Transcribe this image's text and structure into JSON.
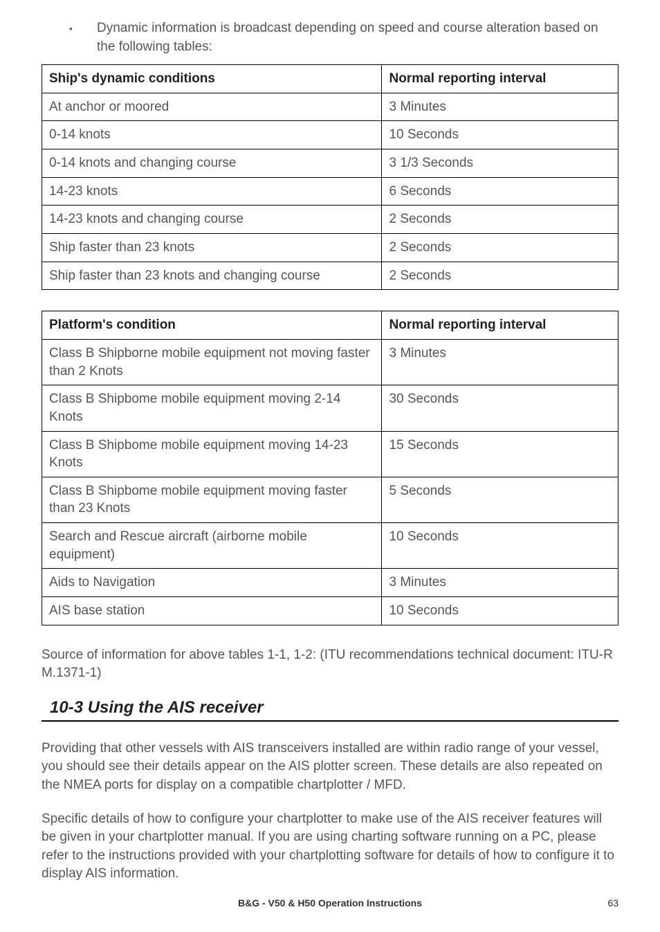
{
  "bullet": {
    "text": "Dynamic information is broadcast depending on speed and course alteration based on the following tables:"
  },
  "table1": {
    "headers": [
      "Ship's dynamic conditions",
      "Normal reporting interval"
    ],
    "rows": [
      [
        "At anchor or moored",
        "3 Minutes"
      ],
      [
        "0-14 knots",
        "10 Seconds"
      ],
      [
        "0-14 knots and changing course",
        "3 1/3 Seconds"
      ],
      [
        "14-23 knots",
        "6 Seconds"
      ],
      [
        "14-23 knots and changing course",
        "2 Seconds"
      ],
      [
        "Ship faster than 23 knots",
        "2 Seconds"
      ],
      [
        "Ship faster than 23 knots and changing course",
        "2 Seconds"
      ]
    ]
  },
  "table2": {
    "headers": [
      "Platform's condition",
      "Normal reporting interval"
    ],
    "rows": [
      [
        "Class B Shipborne mobile equipment not moving faster than 2 Knots",
        "3 Minutes"
      ],
      [
        "Class B Shipbome mobile equipment moving 2-14 Knots",
        "30 Seconds"
      ],
      [
        "Class B Shipbome mobile equipment moving 14-23 Knots",
        "15 Seconds"
      ],
      [
        "Class B Shipbome mobile equipment moving faster than 23 Knots",
        "5 Seconds"
      ],
      [
        "Search and Rescue aircraft (airborne mobile equipment)",
        "10 Seconds"
      ],
      [
        "Aids to Navigation",
        "3 Minutes"
      ],
      [
        "AIS base station",
        "10 Seconds"
      ]
    ]
  },
  "sourceNote": "Source of information for above tables 1-1, 1-2: (ITU recommendations technical document: ITU-R M.1371-1)",
  "section": {
    "heading": "10-3 Using the AIS receiver",
    "para1": "Providing that other vessels with AIS transceivers installed are within radio range of your vessel, you should see their details appear on the AIS plotter screen. These details are also repeated on the NMEA ports for display on a compatible chartplotter / MFD.",
    "para2": "Specific details of how to configure your chartplotter to make use of the AIS receiver features will be given in your chartplotter manual. If you are using charting software running on a PC, please refer to the instructions provided with your chartplotting software for details of how to configure it to display AIS information."
  },
  "footer": {
    "title": "B&G - V50 & H50 Operation Instructions",
    "page": "63"
  }
}
